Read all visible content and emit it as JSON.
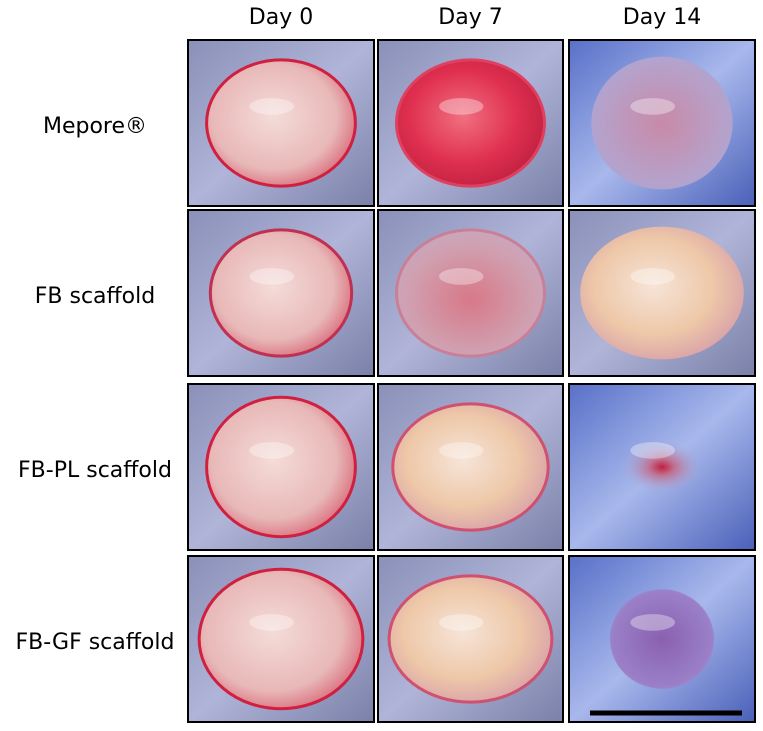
{
  "columns": [
    "Day 0",
    "Day 7",
    "Day 14"
  ],
  "rows": [
    "Mepore®",
    "FB scaffold",
    "FB-PL scaffold",
    "FB-GF scaffold"
  ]
}
